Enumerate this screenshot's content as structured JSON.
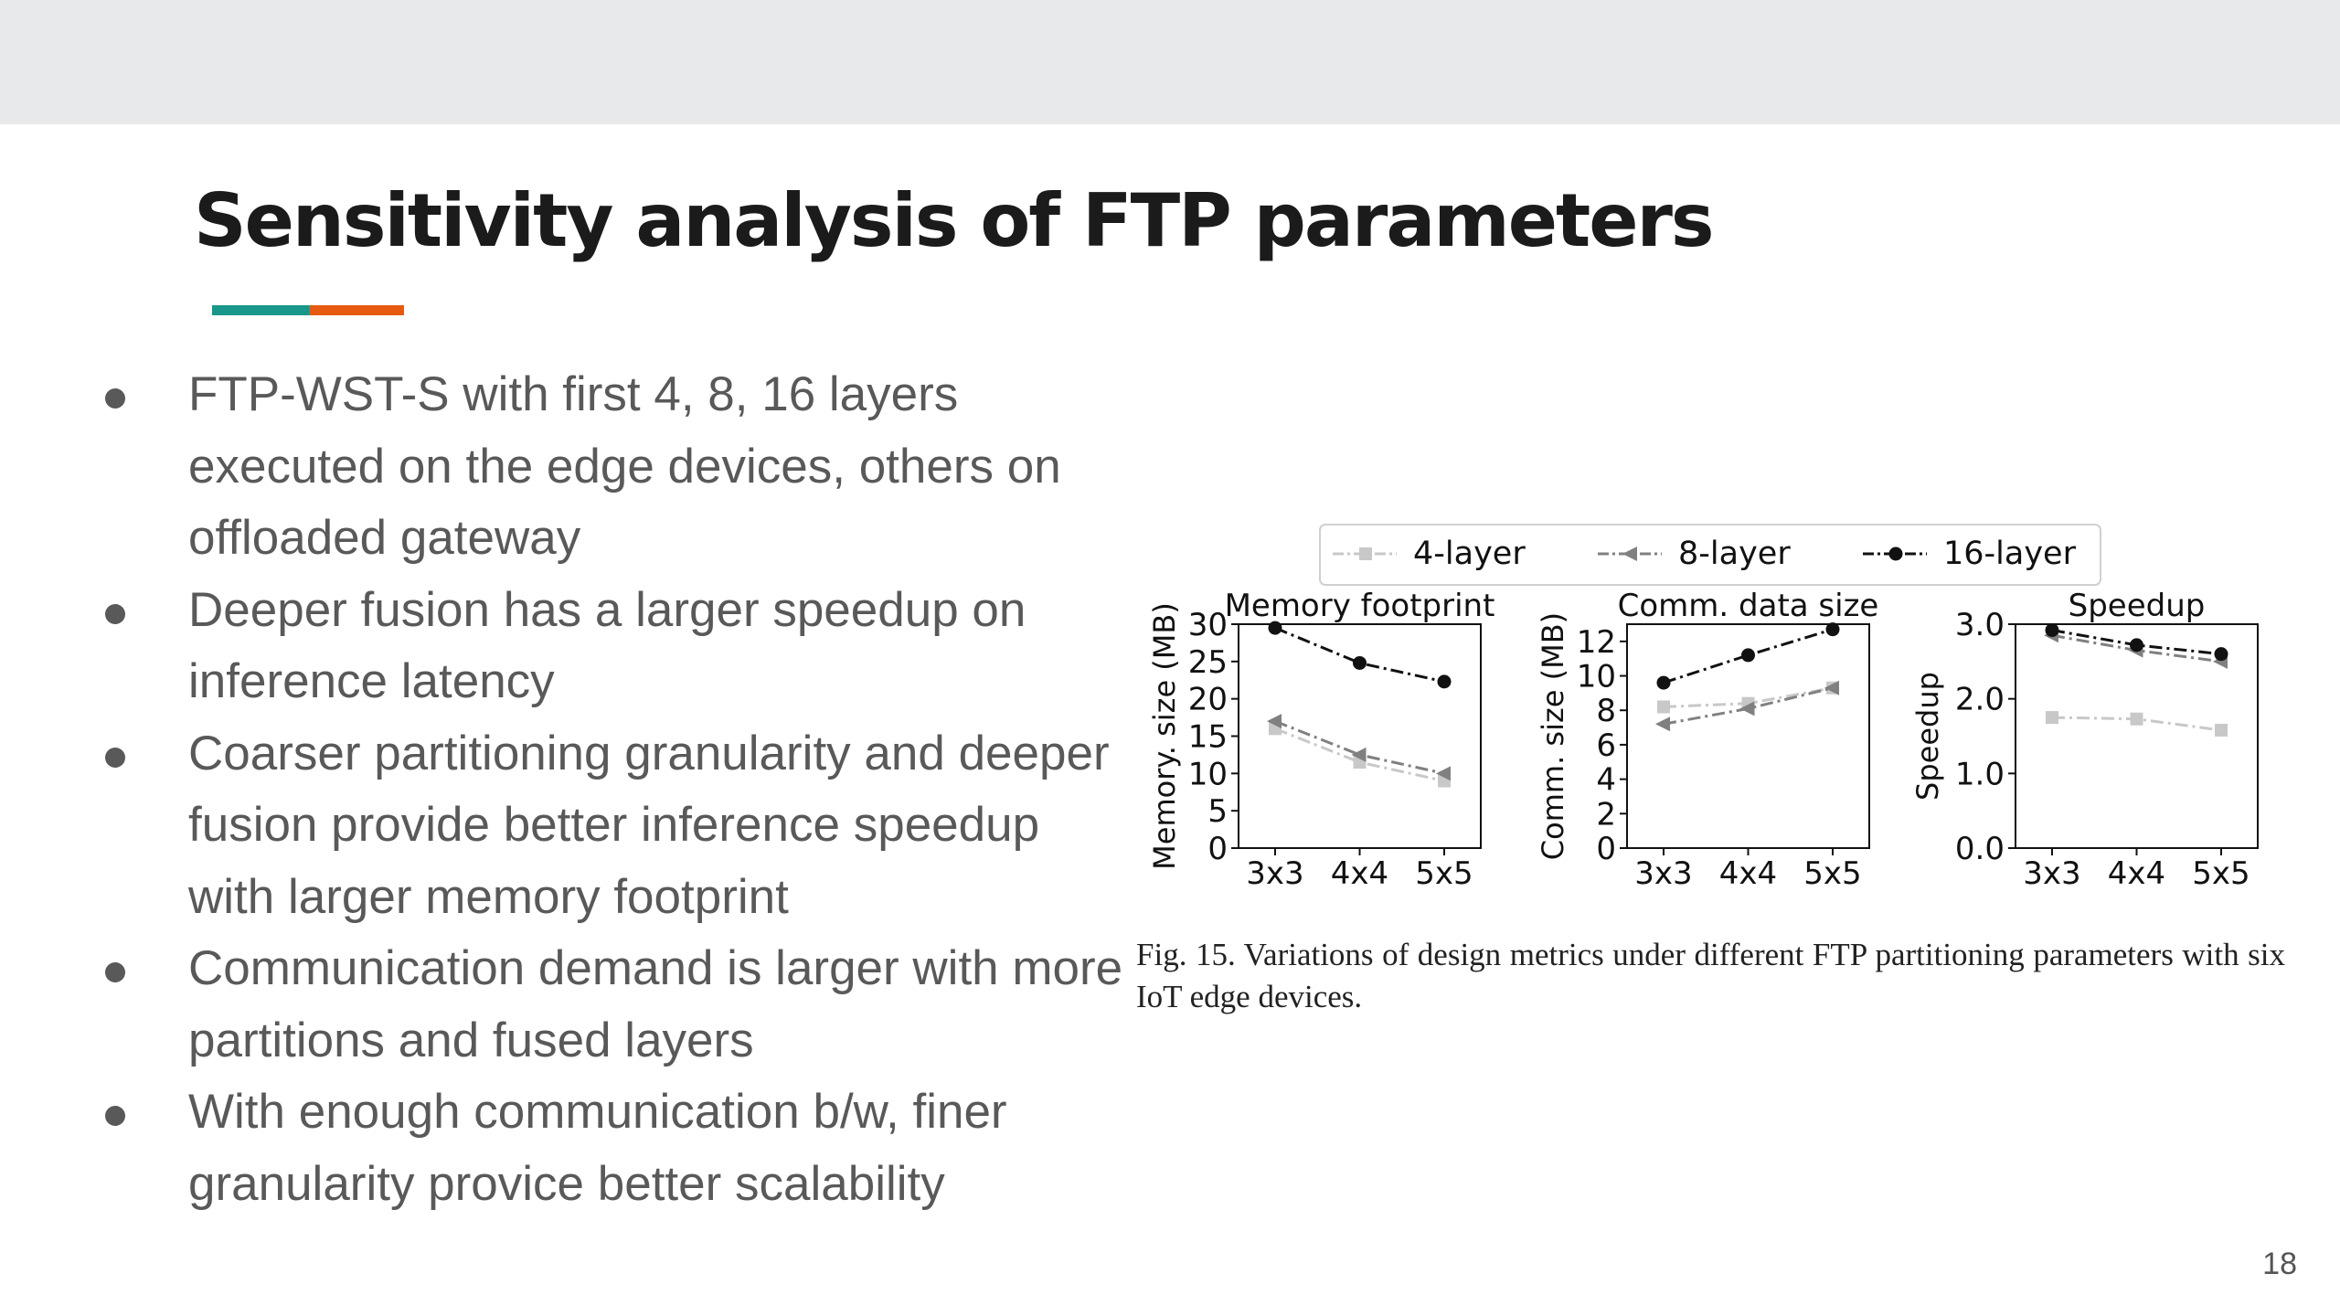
{
  "slide": {
    "title": "Sensitivity analysis of FTP parameters",
    "accent_colors": [
      "#18978a",
      "#e65a0f"
    ],
    "page_number": "18"
  },
  "bullets": [
    "FTP-WST-S with first 4, 8, 16 layers executed on the edge devices, others on offloaded gateway",
    "Deeper fusion has a larger speedup on inference latency",
    "Coarser partitioning granularity and deeper fusion provide better inference speedup with larger memory footprint",
    "Communication demand is larger with more partitions and fused layers",
    "With enough communication b/w, finer granularity provice better scalability"
  ],
  "figure": {
    "caption": "Fig. 15.    Variations of design metrics under different FTP partitioning parameters with six IoT edge devices."
  },
  "chart_data": {
    "type": "line",
    "legend": {
      "placement": "top-center",
      "entries": [
        {
          "label": "4-layer",
          "color": "#c8c8c8",
          "marker": "square",
          "dash": "dash-dot"
        },
        {
          "label": "8-layer",
          "color": "#808080",
          "marker": "triangle-left",
          "dash": "dash-dot"
        },
        {
          "label": "16-layer",
          "color": "#111111",
          "marker": "circle",
          "dash": "dash-dot"
        }
      ]
    },
    "panels": [
      {
        "title": "Memory footprint",
        "ylabel": "Memory. size (MB)",
        "xlabel": "",
        "categories": [
          "3x3",
          "4x4",
          "5x5"
        ],
        "ylim": [
          0,
          30
        ],
        "yticks": [
          0,
          5,
          10,
          15,
          20,
          25,
          30
        ],
        "ytick_labels": [
          "0",
          "5",
          "10",
          "15",
          "20",
          "25",
          "30"
        ],
        "series": [
          {
            "name": "4-layer",
            "values": [
              16,
              11.5,
              9
            ]
          },
          {
            "name": "8-layer",
            "values": [
              17,
              12.5,
              10
            ]
          },
          {
            "name": "16-layer",
            "values": [
              29.5,
              24.8,
              22.3
            ]
          }
        ]
      },
      {
        "title": "Comm. data size",
        "ylabel": "Comm. size (MB)",
        "xlabel": "",
        "categories": [
          "3x3",
          "4x4",
          "5x5"
        ],
        "ylim": [
          0,
          13
        ],
        "yticks": [
          0,
          2,
          4,
          6,
          8,
          10,
          12
        ],
        "ytick_labels": [
          "0",
          "2",
          "4",
          "6",
          "8",
          "10",
          "12"
        ],
        "series": [
          {
            "name": "4-layer",
            "values": [
              8.2,
              8.4,
              9.3
            ]
          },
          {
            "name": "8-layer",
            "values": [
              7.2,
              8.1,
              9.3
            ]
          },
          {
            "name": "16-layer",
            "values": [
              9.6,
              11.2,
              12.7
            ]
          }
        ]
      },
      {
        "title": "Speedup",
        "ylabel": "Speedup",
        "xlabel": "",
        "categories": [
          "3x3",
          "4x4",
          "5x5"
        ],
        "ylim": [
          0,
          3
        ],
        "yticks": [
          0,
          1,
          2,
          3
        ],
        "ytick_labels": [
          "0.0",
          "1.0",
          "2.0",
          "3.0"
        ],
        "series": [
          {
            "name": "4-layer",
            "values": [
              1.75,
              1.73,
              1.58
            ]
          },
          {
            "name": "8-layer",
            "values": [
              2.85,
              2.65,
              2.5
            ]
          },
          {
            "name": "16-layer",
            "values": [
              2.92,
              2.72,
              2.6
            ]
          }
        ]
      }
    ]
  }
}
